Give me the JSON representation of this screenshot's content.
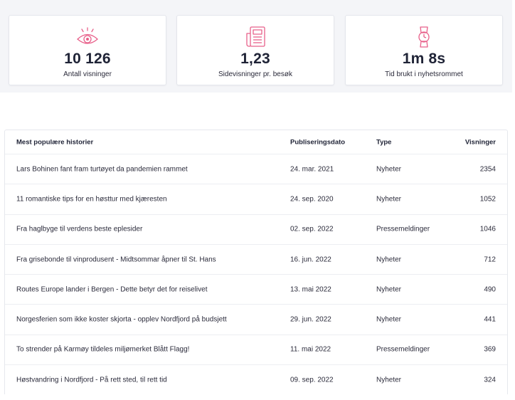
{
  "stats": [
    {
      "value": "10 126",
      "label": "Antall visninger",
      "icon": "eye-icon"
    },
    {
      "value": "1,23",
      "label": "Sidevisninger pr. besøk",
      "icon": "newspaper-icon"
    },
    {
      "value": "1m 8s",
      "label": "Tid brukt i nyhetsrommet",
      "icon": "watch-icon"
    }
  ],
  "colors": {
    "accent": "#e8608a"
  },
  "table": {
    "headers": {
      "title": "Mest populære historier",
      "date": "Publiseringsdato",
      "type": "Type",
      "views": "Visninger"
    },
    "rows": [
      {
        "title": "Lars Bohinen fant fram turtøyet da pandemien rammet",
        "date": "24. mar. 2021",
        "type": "Nyheter",
        "views": "2354"
      },
      {
        "title": "11 romantiske tips for en høsttur med kjæresten",
        "date": "24. sep. 2020",
        "type": "Nyheter",
        "views": "1052"
      },
      {
        "title": "Fra haglbyge til verdens beste eplesider",
        "date": "02. sep. 2022",
        "type": "Pressemeldinger",
        "views": "1046"
      },
      {
        "title": "Fra grisebonde til vinprodusent - Midtsommar åpner til St. Hans",
        "date": "16. jun. 2022",
        "type": "Nyheter",
        "views": "712"
      },
      {
        "title": "Routes Europe lander i Bergen - Dette betyr det for reiselivet",
        "date": "13. mai 2022",
        "type": "Nyheter",
        "views": "490"
      },
      {
        "title": "Norgesferien som ikke koster skjorta - opplev Nordfjord på budsjett",
        "date": "29. jun. 2022",
        "type": "Nyheter",
        "views": "441"
      },
      {
        "title": "To strender på Karmøy tildeles miljømerket Blått Flagg!",
        "date": "11. mai 2022",
        "type": "Pressemeldinger",
        "views": "369"
      },
      {
        "title": "Høstvandring i Nordfjord - På rett sted, til rett tid",
        "date": "09. sep. 2022",
        "type": "Nyheter",
        "views": "324"
      }
    ]
  }
}
